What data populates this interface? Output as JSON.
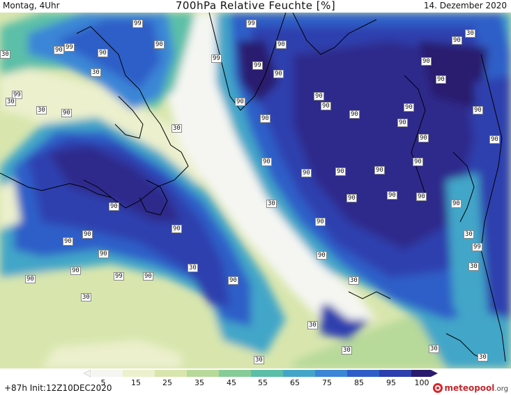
{
  "header": {
    "time_label": "Montag, 4Uhr",
    "title": "700hPa Relative Feuchte [%]",
    "date": "14. Dezember 2020"
  },
  "colors": {
    "c100": "#2a1a6e",
    "c95": "#2e2a8c",
    "c90": "#2d3fae",
    "c85": "#2f5ec8",
    "c75": "#3b86d6",
    "c65": "#43a6c8",
    "c55": "#5bbfa8",
    "c45": "#86cc98",
    "c35": "#b7d99a",
    "c25": "#d8e6ad",
    "c15": "#ecf0cd",
    "c5": "#f5f6f2",
    "land": "#000000"
  },
  "legend": {
    "ticks": [
      "5",
      "15",
      "25",
      "35",
      "45",
      "55",
      "65",
      "75",
      "85",
      "95",
      "100"
    ]
  },
  "isolines": [
    {
      "v": "99",
      "a": "1"
    },
    {
      "v": "99",
      "a": "2"
    },
    {
      "v": "90",
      "a": "3"
    },
    {
      "v": "90",
      "a": "4"
    },
    {
      "v": "90",
      "a": "5"
    },
    {
      "v": "30",
      "a": "6"
    },
    {
      "v": "99",
      "a": "7"
    },
    {
      "v": "30",
      "a": "8"
    },
    {
      "v": "90",
      "a": "9"
    },
    {
      "v": "30",
      "a": "10"
    },
    {
      "v": "99",
      "a": "11"
    },
    {
      "v": "90",
      "a": "12"
    },
    {
      "v": "99",
      "a": "13"
    },
    {
      "v": "90",
      "a": "14"
    },
    {
      "v": "99",
      "a": "15"
    },
    {
      "v": "30",
      "a": "16"
    },
    {
      "v": "30",
      "a": "17"
    },
    {
      "v": "90",
      "a": "18"
    },
    {
      "v": "30",
      "a": "19"
    },
    {
      "v": "90",
      "a": "20"
    },
    {
      "v": "90",
      "a": "21"
    },
    {
      "v": "90",
      "a": "22"
    },
    {
      "v": "90",
      "a": "23"
    },
    {
      "v": "90",
      "a": "24"
    },
    {
      "v": "90",
      "a": "25"
    },
    {
      "v": "90",
      "a": "26"
    },
    {
      "v": "90",
      "a": "27"
    },
    {
      "v": "90",
      "a": "28"
    },
    {
      "v": "90",
      "a": "29"
    },
    {
      "v": "90",
      "a": "30"
    },
    {
      "v": "90",
      "a": "31"
    },
    {
      "v": "90",
      "a": "32"
    },
    {
      "v": "90",
      "a": "33"
    },
    {
      "v": "90",
      "a": "34"
    },
    {
      "v": "90",
      "a": "35"
    },
    {
      "v": "30",
      "a": "36"
    },
    {
      "v": "90",
      "a": "37"
    },
    {
      "v": "90",
      "a": "38"
    },
    {
      "v": "90",
      "a": "39"
    },
    {
      "v": "90",
      "a": "40"
    },
    {
      "v": "90",
      "a": "41"
    },
    {
      "v": "90",
      "a": "42"
    },
    {
      "v": "90",
      "a": "43"
    },
    {
      "v": "90",
      "a": "44"
    },
    {
      "v": "90",
      "a": "45"
    },
    {
      "v": "99",
      "a": "46"
    },
    {
      "v": "90",
      "a": "47"
    },
    {
      "v": "30",
      "a": "48"
    },
    {
      "v": "90",
      "a": "49"
    },
    {
      "v": "90",
      "a": "50"
    },
    {
      "v": "30",
      "a": "51"
    },
    {
      "v": "90",
      "a": "52"
    },
    {
      "v": "99",
      "a": "53"
    },
    {
      "v": "90",
      "a": "54"
    },
    {
      "v": "30",
      "a": "55"
    },
    {
      "v": "30",
      "a": "56"
    },
    {
      "v": "90",
      "a": "57"
    },
    {
      "v": "30",
      "a": "58"
    },
    {
      "v": "90",
      "a": "59"
    },
    {
      "v": "30",
      "a": "60"
    },
    {
      "v": "30",
      "a": "61"
    },
    {
      "v": "30",
      "a": "62"
    },
    {
      "v": "30",
      "a": "63"
    },
    {
      "v": "30",
      "a": "64"
    }
  ],
  "footer": {
    "run_info": "+87h Init:12Z10DEC2020",
    "logo_name": "meteopool",
    "logo_tld": ".org"
  }
}
